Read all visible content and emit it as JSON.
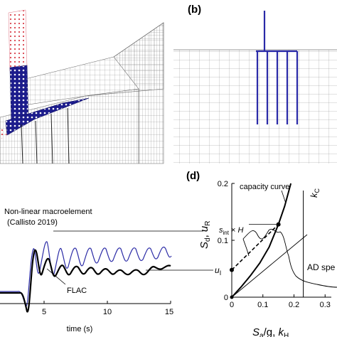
{
  "panels": {
    "b": {
      "label": "(b)"
    },
    "d": {
      "label": "(d)"
    }
  },
  "panel_c": {
    "legend_macroelement_line1": "Non-linear macroelement",
    "legend_macroelement_line2": "(Callisto 2019)",
    "legend_flac": "FLAC",
    "xlabel": "time (s)",
    "xticks": [
      "5",
      "10",
      "15"
    ],
    "colors": {
      "macroelement": "#2b2ba6",
      "flac": "#000000"
    }
  },
  "chart_data": {
    "type": "line",
    "xlabel": "S_a/g, k_H",
    "ylabel": "S_d, u_R",
    "xlim": [
      0,
      0.32
    ],
    "ylim": [
      0,
      0.2
    ],
    "xticks": [
      0,
      0.1,
      0.2,
      0.3
    ],
    "yticks": [
      0,
      0.1,
      0.2
    ],
    "series": [
      {
        "name": "capacity curve",
        "x": [
          0.0,
          0.03,
          0.06,
          0.09,
          0.12,
          0.15,
          0.17,
          0.19
        ],
        "y": [
          0.0,
          0.018,
          0.038,
          0.06,
          0.088,
          0.128,
          0.16,
          0.2
        ]
      }
    ],
    "annotations": {
      "capacity_curve": "capacity curve",
      "kc": "k_C",
      "s_int_h": "s_int × H",
      "u_i": "u_I",
      "ad_spectrum": "AD spe"
    },
    "kc_value": 0.23,
    "s_int_h_y": 0.128,
    "u_i_y": 0.048
  }
}
